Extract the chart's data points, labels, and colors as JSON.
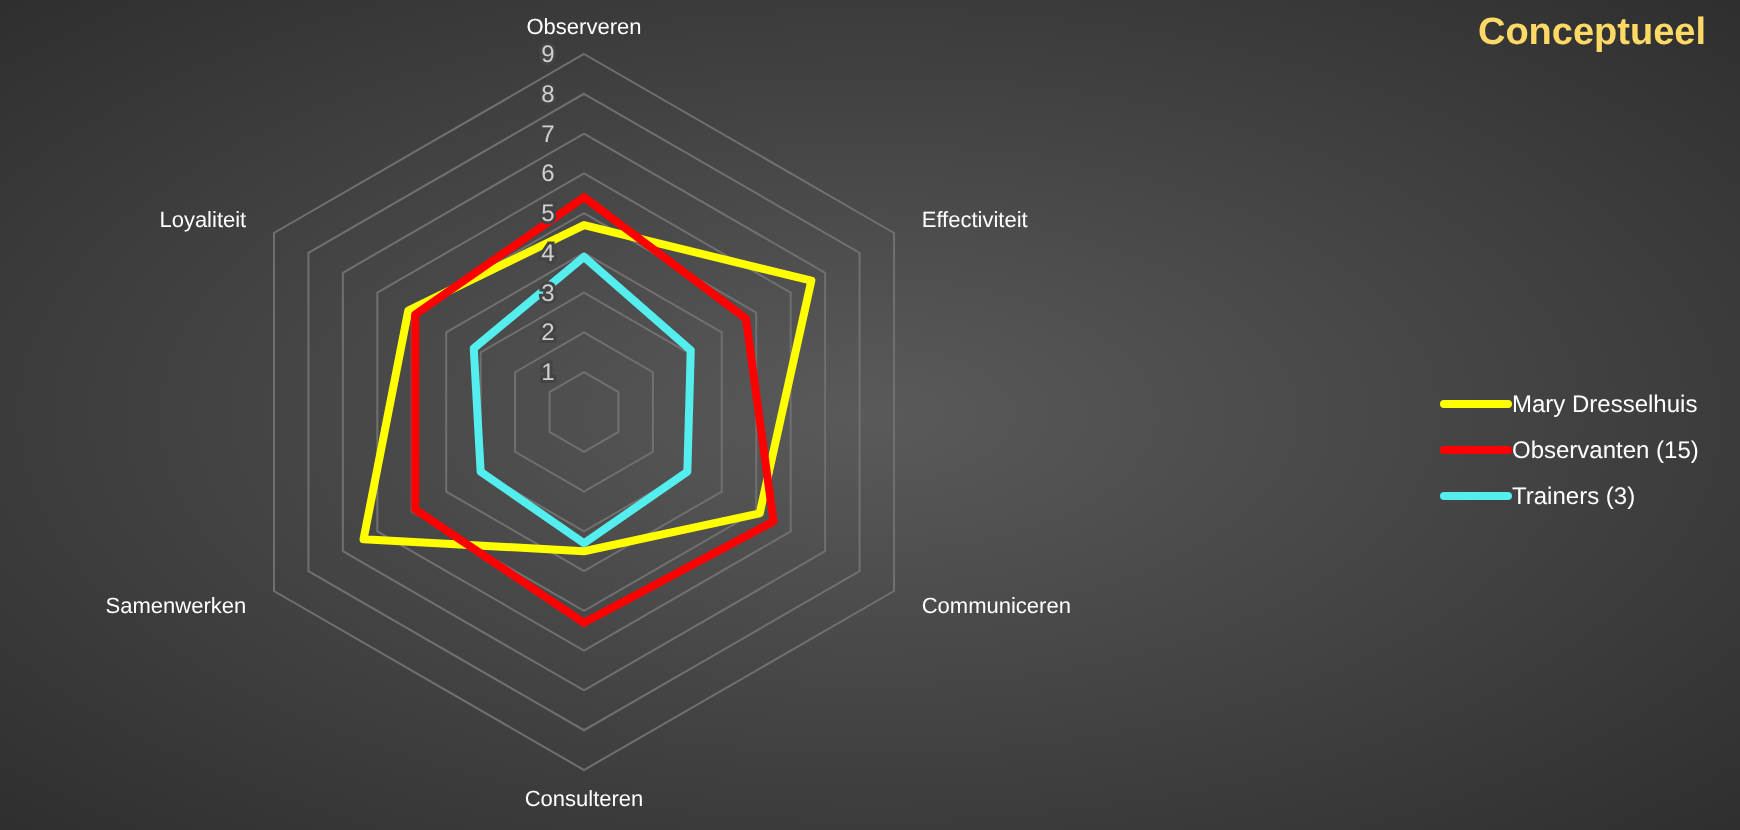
{
  "chart_data": {
    "type": "radar",
    "title": "Conceptueel",
    "categories": [
      "Observeren",
      "Effectiviteit",
      "Communiceren",
      "Consulteren",
      "Samenwerken",
      "Loyaliteit"
    ],
    "ylim": [
      0,
      9
    ],
    "yticks": [
      1,
      2,
      3,
      4,
      5,
      6,
      7,
      8,
      9
    ],
    "grid": true,
    "legend": "right",
    "marker": "none",
    "series": [
      {
        "name": "Mary Dresselhuis",
        "color": "#ffff00",
        "values": [
          4.7,
          6.6,
          5.1,
          3.5,
          6.4,
          5.1
        ]
      },
      {
        "name": "Observanten (15)",
        "color": "#ff0000",
        "values": [
          5.4,
          4.7,
          5.5,
          5.3,
          4.9,
          4.9
        ]
      },
      {
        "name": "Trainers (3)",
        "color": "#55eeee",
        "values": [
          3.9,
          3.1,
          3.0,
          3.3,
          3.0,
          3.2
        ]
      }
    ]
  }
}
